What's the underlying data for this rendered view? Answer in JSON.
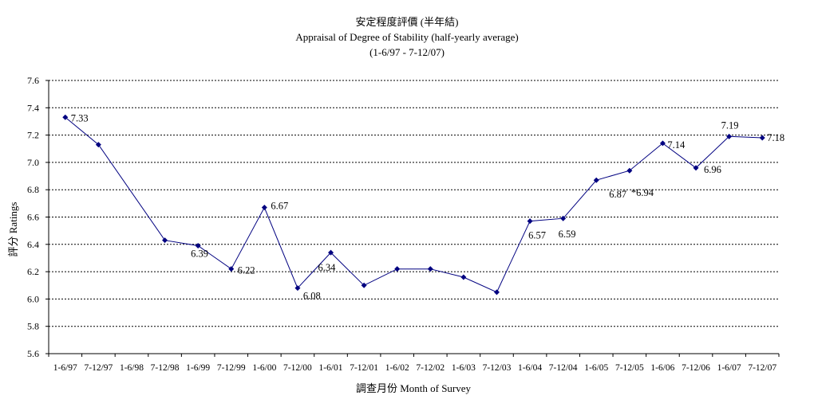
{
  "chart_data": {
    "type": "line",
    "title": "安定程度評價 (半年結)",
    "subtitle": "Appraisal of Degree of Stability (half-yearly average)",
    "subtitle2": "(1-6/97 - 7-12/07)",
    "xlabel": "調查月份 Month of Survey",
    "ylabel": "評分 Ratings",
    "ylim": [
      5.6,
      7.6
    ],
    "yticks": [
      "5.6",
      "5.8",
      "6.0",
      "6.2",
      "6.4",
      "6.6",
      "6.8",
      "7.0",
      "7.2",
      "7.4",
      "7.6"
    ],
    "grid": true,
    "categories": [
      "1-6/97",
      "7-12/97",
      "1-6/98",
      "7-12/98",
      "1-6/99",
      "7-12/99",
      "1-6/00",
      "7-12/00",
      "1-6/01",
      "7-12/01",
      "1-6/02",
      "7-12/02",
      "1-6/03",
      "7-12/03",
      "1-6/04",
      "7-12/04",
      "1-6/05",
      "7-12/05",
      "1-6/06",
      "7-12/06",
      "1-6/07",
      "7-12/07"
    ],
    "series": [
      {
        "color": "#000080",
        "x": [
          "1-6/97",
          "7-12/97",
          "7-12/98",
          "1-6/99",
          "7-12/99",
          "1-6/00",
          "7-12/00",
          "1-6/01",
          "7-12/01",
          "1-6/02",
          "7-12/02",
          "1-6/03",
          "7-12/03",
          "1-6/04",
          "7-12/04",
          "1-6/05",
          "7-12/05",
          "1-6/06",
          "7-12/06",
          "1-6/07",
          "7-12/07"
        ],
        "values": [
          7.33,
          7.13,
          6.43,
          6.39,
          6.22,
          6.67,
          6.08,
          6.34,
          6.1,
          6.22,
          6.22,
          6.16,
          6.05,
          6.57,
          6.59,
          6.87,
          6.94,
          7.14,
          6.96,
          7.19,
          7.18
        ]
      }
    ],
    "data_labels": [
      {
        "x": "1-6/97",
        "text": "7.33"
      },
      {
        "x": "1-6/99",
        "text": "6.39"
      },
      {
        "x": "7-12/99",
        "text": "6.22"
      },
      {
        "x": "1-6/00",
        "text": "6.67"
      },
      {
        "x": "7-12/00",
        "text": "6.08"
      },
      {
        "x": "1-6/01",
        "text": "6.34"
      },
      {
        "x": "1-6/04",
        "text": "6.57"
      },
      {
        "x": "7-12/04",
        "text": "6.59"
      },
      {
        "x": "1-6/05",
        "text": "6.87"
      },
      {
        "x": "7-12/05",
        "text": "*6.94"
      },
      {
        "x": "1-6/06",
        "text": "7.14"
      },
      {
        "x": "7-12/06",
        "text": "6.96"
      },
      {
        "x": "1-6/07",
        "text": "7.19"
      },
      {
        "x": "7-12/07",
        "text": "7.18"
      }
    ]
  }
}
